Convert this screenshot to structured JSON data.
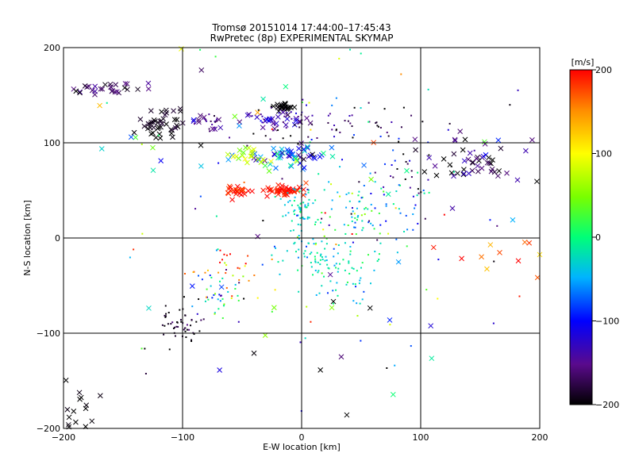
{
  "chart_data": {
    "type": "scatter",
    "title": "Tromsø 20151014 17:44:00–17:45:43",
    "subtitle": "RwPretec (8p) EXPERIMENTAL SKYMAP",
    "xlabel": "E-W location [km]",
    "ylabel": "N-S location [km]",
    "xlim": [
      -200,
      200
    ],
    "ylim": [
      -200,
      200
    ],
    "xticks": [
      -200,
      -100,
      0,
      100,
      200
    ],
    "yticks": [
      -200,
      -100,
      0,
      100,
      200
    ],
    "grid": true,
    "colorbar": {
      "label": "[m/s]",
      "range": [
        -200,
        200
      ],
      "ticks": [
        200,
        100,
        0,
        -100,
        -200
      ],
      "colormap": "rainbow",
      "placement": "right"
    },
    "clusters": [
      {
        "x": -120,
        "y": 120,
        "sx": 8,
        "sy": 8,
        "n": 45,
        "v": -195,
        "vs": 10,
        "m": "x"
      },
      {
        "x": -15,
        "y": 138,
        "sx": 5,
        "sy": 2,
        "n": 25,
        "v": -200,
        "vs": 5,
        "m": "x"
      },
      {
        "x": -20,
        "y": 125,
        "sx": 15,
        "sy": 5,
        "n": 50,
        "v": -140,
        "vs": 20,
        "m": "mix"
      },
      {
        "x": -80,
        "y": 122,
        "sx": 8,
        "sy": 4,
        "n": 25,
        "v": -150,
        "vs": 15,
        "m": "mix"
      },
      {
        "x": -165,
        "y": 157,
        "sx": 18,
        "sy": 4,
        "n": 30,
        "v": -165,
        "vs": 20,
        "m": "x"
      },
      {
        "x": -10,
        "y": 85,
        "sx": 20,
        "sy": 6,
        "n": 60,
        "v": -70,
        "vs": 60,
        "m": "x"
      },
      {
        "x": -45,
        "y": 88,
        "sx": 8,
        "sy": 4,
        "n": 20,
        "v": 80,
        "vs": 20,
        "m": "x"
      },
      {
        "x": -15,
        "y": 50,
        "sx": 8,
        "sy": 3,
        "n": 45,
        "v": 195,
        "vs": 10,
        "m": "x"
      },
      {
        "x": -55,
        "y": 48,
        "sx": 6,
        "sy": 3,
        "n": 25,
        "v": 190,
        "vs": 15,
        "m": "x"
      },
      {
        "x": 0,
        "y": 30,
        "sx": 8,
        "sy": 18,
        "n": 70,
        "v": -30,
        "vs": 20,
        "m": "dot"
      },
      {
        "x": 30,
        "y": -25,
        "sx": 22,
        "sy": 18,
        "n": 110,
        "v": -20,
        "vs": 25,
        "m": "dot"
      },
      {
        "x": 55,
        "y": 30,
        "sx": 28,
        "sy": 20,
        "n": 90,
        "v": -40,
        "vs": 60,
        "m": "dot"
      },
      {
        "x": 30,
        "y": 120,
        "sx": 40,
        "sy": 12,
        "n": 55,
        "v": -170,
        "vs": 40,
        "m": "dot"
      },
      {
        "x": 150,
        "y": 78,
        "sx": 25,
        "sy": 12,
        "n": 55,
        "v": -170,
        "vs": 35,
        "m": "x"
      },
      {
        "x": 90,
        "y": 75,
        "sx": 20,
        "sy": 20,
        "n": 30,
        "v": -150,
        "vs": 50,
        "m": "dot"
      },
      {
        "x": -100,
        "y": -92,
        "sx": 10,
        "sy": 10,
        "n": 50,
        "v": -190,
        "vs": 20,
        "m": "dot"
      },
      {
        "x": -70,
        "y": -60,
        "sx": 12,
        "sy": 15,
        "n": 40,
        "v": -40,
        "vs": 70,
        "m": "dot"
      },
      {
        "x": -60,
        "y": -30,
        "sx": 15,
        "sy": 15,
        "n": 25,
        "v": 170,
        "vs": 40,
        "m": "dot"
      },
      {
        "x": 0,
        "y": 100,
        "sx": 80,
        "sy": 100,
        "n": 120,
        "v": 0,
        "vs": 120,
        "m": "mix"
      },
      {
        "x": 0,
        "y": -100,
        "sx": 100,
        "sy": 60,
        "n": 45,
        "v": -100,
        "vs": 100,
        "m": "mix"
      },
      {
        "x": -185,
        "y": -180,
        "sx": 8,
        "sy": 15,
        "n": 15,
        "v": -200,
        "vs": 5,
        "m": "x"
      },
      {
        "x": 160,
        "y": -20,
        "sx": 30,
        "sy": 10,
        "n": 12,
        "v": 170,
        "vs": 40,
        "m": "x"
      }
    ]
  },
  "colors": {
    "axis": "#000000",
    "background": "#ffffff"
  }
}
